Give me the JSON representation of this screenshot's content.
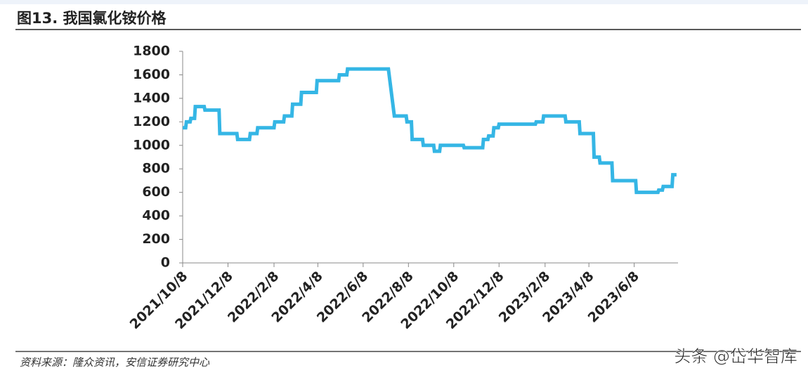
{
  "chart_data": {
    "type": "line",
    "title": "图13. 我国氯化铵价格",
    "source": "资料来源：隆众资讯，安信证券研究中心",
    "watermark": "头条 @岱华智库",
    "x": [
      "2021/10/8",
      "2021/10/12",
      "2021/10/13",
      "2021/10/18",
      "2021/10/19",
      "2021/10/24",
      "2021/10/25",
      "2021/11/6",
      "2021/11/7",
      "2021/11/26",
      "2021/11/27",
      "2021/12/20",
      "2021/12/21",
      "2022/1/6",
      "2022/1/7",
      "2022/1/16",
      "2022/1/17",
      "2022/2/8",
      "2022/2/9",
      "2022/2/21",
      "2022/2/22",
      "2022/3/4",
      "2022/3/5",
      "2022/3/16",
      "2022/3/17",
      "2022/4/6",
      "2022/4/7",
      "2022/5/6",
      "2022/5/7",
      "2022/5/17",
      "2022/5/18",
      "2022/7/12",
      "2022/7/20",
      "2022/8/5",
      "2022/8/6",
      "2022/8/12",
      "2022/8/13",
      "2022/8/27",
      "2022/8/28",
      "2022/9/11",
      "2022/9/12",
      "2022/9/19",
      "2022/9/20",
      "2022/10/21",
      "2022/10/22",
      "2022/11/16",
      "2022/11/17",
      "2022/11/23",
      "2022/11/24",
      "2022/11/30",
      "2022/12/1",
      "2022/12/7",
      "2022/12/8",
      "2023/1/26",
      "2023/1/27",
      "2023/2/5",
      "2023/2/6",
      "2023/3/7",
      "2023/3/8",
      "2023/3/26",
      "2023/3/27",
      "2023/4/14",
      "2023/4/15",
      "2023/4/22",
      "2023/4/23",
      "2023/5/9",
      "2023/5/10",
      "2023/6/10",
      "2023/6/11",
      "2023/7/10",
      "2023/7/11",
      "2023/7/16",
      "2023/7/17",
      "2023/7/29",
      "2023/7/30",
      "2023/8/4"
    ],
    "series": [
      {
        "color": "#35b6e5",
        "values": [
          1150,
          1150,
          1200,
          1200,
          1230,
          1230,
          1330,
          1330,
          1300,
          1300,
          1100,
          1100,
          1050,
          1050,
          1100,
          1100,
          1150,
          1150,
          1200,
          1200,
          1250,
          1250,
          1350,
          1350,
          1450,
          1450,
          1550,
          1550,
          1600,
          1600,
          1650,
          1650,
          1250,
          1250,
          1200,
          1200,
          1050,
          1050,
          1000,
          1000,
          950,
          950,
          1000,
          1000,
          980,
          980,
          1050,
          1050,
          1080,
          1080,
          1150,
          1150,
          1180,
          1180,
          1200,
          1200,
          1250,
          1250,
          1200,
          1200,
          1100,
          1100,
          900,
          900,
          850,
          850,
          700,
          700,
          600,
          600,
          620,
          620,
          650,
          650,
          750,
          750
        ]
      }
    ],
    "xlim": [
      "2021/10/8",
      "2023/8/6"
    ],
    "xticks": [
      "2021/10/8",
      "2021/12/8",
      "2022/2/8",
      "2022/4/8",
      "2022/6/8",
      "2022/8/8",
      "2022/10/8",
      "2022/12/8",
      "2023/2/8",
      "2023/4/8",
      "2023/6/8"
    ],
    "ylim": [
      0,
      1800
    ],
    "yticks": [
      0,
      200,
      400,
      600,
      800,
      1000,
      1200,
      1400,
      1600,
      1800
    ]
  }
}
